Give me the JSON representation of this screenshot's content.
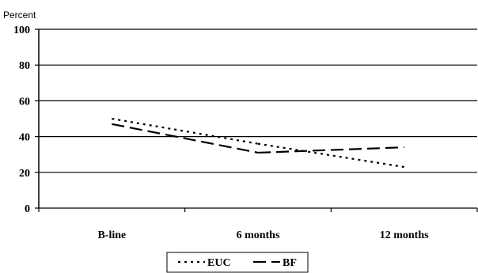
{
  "chart_data": {
    "type": "line",
    "ylabel": "Percent",
    "xlabel": "",
    "title": "",
    "ylim": [
      0,
      100
    ],
    "yticks": [
      0,
      20,
      40,
      60,
      80,
      100
    ],
    "grid": true,
    "legend_position": "bottom",
    "categories": [
      "B-line",
      "6 months",
      "12 months"
    ],
    "series": [
      {
        "name": "EUC",
        "values": [
          50,
          36,
          23
        ],
        "style": "dotted",
        "color": "#000000"
      },
      {
        "name": "BF",
        "values": [
          47,
          31,
          34
        ],
        "style": "dashed",
        "color": "#000000"
      }
    ]
  }
}
